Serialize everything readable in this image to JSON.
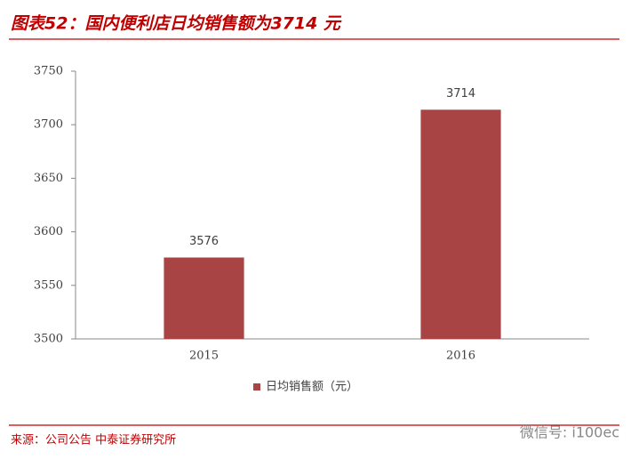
{
  "chart_data": {
    "type": "bar",
    "title": "图表52：国内便利店日均销售额为3714 元",
    "categories": [
      "2015",
      "2016"
    ],
    "series": [
      {
        "name": "日均销售额（元）",
        "color": "#a84444",
        "values": [
          3576,
          3714
        ]
      }
    ],
    "ylim": [
      3500,
      3750
    ],
    "yticks": [
      3500,
      3550,
      3600,
      3650,
      3700,
      3750
    ],
    "data_labels": true,
    "grid": false,
    "legend": "bottom",
    "source": "来源：公司公告 中泰证券研究所",
    "watermark": "微信号: i100ec"
  }
}
